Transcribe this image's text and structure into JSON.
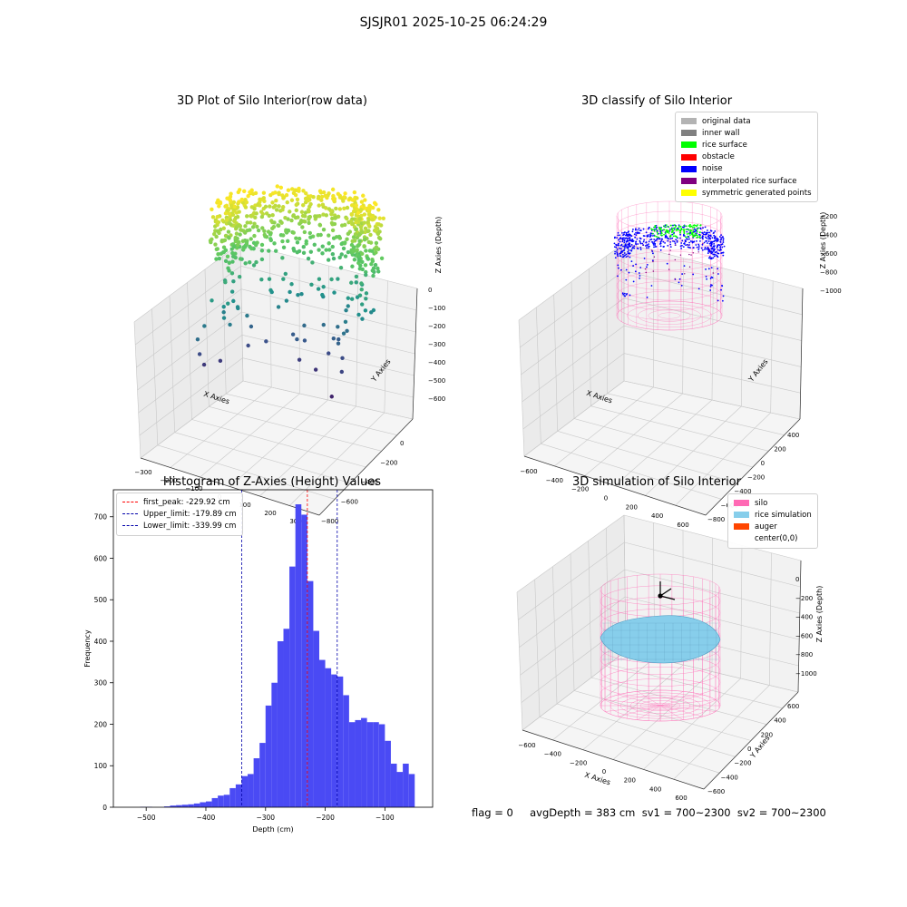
{
  "figure": {
    "title": "SJSJR01 2025-10-25 06:24:29",
    "status_text": "flag = 0     avgDepth = 383 cm  sv1 = 700~2300  sv2 = 700~2300"
  },
  "panels": {
    "raw": {
      "title": "3D Plot of Silo Interior(row data)",
      "xlabel": "X Axies",
      "ylabel": "Y Axies",
      "zlabel": "Z Axies (Depth)",
      "xticks": [
        "-300",
        "-200",
        "-100",
        "0",
        "100",
        "200",
        "300"
      ],
      "yticks": [
        "0",
        "-200",
        "-400",
        "-600",
        "-800"
      ],
      "zticks": [
        "0",
        "-100",
        "-200",
        "-300",
        "-400",
        "-500",
        "-600"
      ]
    },
    "classify": {
      "title": "3D classify of Silo Interior",
      "xlabel": "X Axies",
      "ylabel": "Y Axies",
      "zlabel": "Z Axies (Depth)",
      "xticks": [
        "-600",
        "-400",
        "-200",
        "0",
        "200",
        "400",
        "600"
      ],
      "yticks": [
        "400",
        "200",
        "0",
        "-200",
        "-400",
        "-600",
        "-800"
      ],
      "zticks": [
        "-200",
        "-400",
        "-600",
        "-800",
        "-1000"
      ],
      "legend": [
        {
          "label": "original data",
          "color": "#b3b3b3"
        },
        {
          "label": "inner wall",
          "color": "#808080"
        },
        {
          "label": "rice surface",
          "color": "#00ff00"
        },
        {
          "label": "obstacle",
          "color": "#ff0000"
        },
        {
          "label": "noise",
          "color": "#0000ff"
        },
        {
          "label": "interpolated rice surface",
          "color": "#800080"
        },
        {
          "label": "symmetric generated points",
          "color": "#ffff00"
        }
      ]
    },
    "simulation": {
      "title": "3D simulation of Silo Interior",
      "xlabel": "X Axies",
      "ylabel": "Y Axies",
      "zlabel": "Z Axies (Depth)",
      "xticks": [
        "-600",
        "-400",
        "-200",
        "0",
        "200",
        "400",
        "600"
      ],
      "yticks": [
        "600",
        "400",
        "200",
        "0",
        "-200",
        "-400",
        "-600"
      ],
      "zticks": [
        "0",
        "-200",
        "-400",
        "-600",
        "-800",
        "-1000"
      ],
      "legend": [
        {
          "label": "silo",
          "color": "#ff69b4"
        },
        {
          "label": "rice simulation",
          "color": "#87ceeb"
        },
        {
          "label": "auger",
          "color": "#ff4500"
        },
        {
          "label": "center(0,0)",
          "color": ""
        }
      ]
    }
  },
  "chart_data": {
    "type": "bar",
    "title": "Histogram of Z-Axies (Height) Values",
    "xlabel": "Depth (cm)",
    "ylabel": "Frequency",
    "xlim": [
      -555,
      -20
    ],
    "ylim": [
      0,
      765
    ],
    "xticks": [
      -500,
      -400,
      -300,
      -200,
      -100
    ],
    "yticks": [
      0,
      100,
      200,
      300,
      400,
      500,
      600,
      700
    ],
    "bin_start": -510,
    "bin_width": 10,
    "values": [
      1,
      1,
      0,
      0,
      2,
      4,
      5,
      6,
      7,
      9,
      12,
      14,
      22,
      28,
      30,
      46,
      55,
      75,
      80,
      118,
      155,
      245,
      300,
      400,
      430,
      580,
      730,
      705,
      545,
      425,
      355,
      335,
      320,
      315,
      270,
      205,
      210,
      215,
      205,
      205,
      200,
      160,
      105,
      85,
      105,
      80
    ],
    "bar_color": "#4a4af4",
    "lines": [
      {
        "label": "first_peak: -229.92 cm",
        "x": -229.92,
        "color": "#ff0000"
      },
      {
        "label": "Upper_limit: -179.89 cm",
        "x": -179.89,
        "color": "#0000aa"
      },
      {
        "label": "Lower_limit: -339.99 cm",
        "x": -339.99,
        "color": "#0000aa"
      }
    ]
  }
}
